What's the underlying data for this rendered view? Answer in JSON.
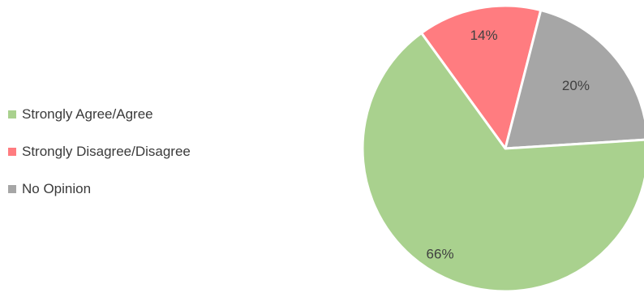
{
  "chart_data": {
    "type": "pie",
    "categories": [
      "Strongly Agree/Agree",
      "Strongly Disagree/Disagree",
      "No Opinion"
    ],
    "values": [
      66,
      14,
      20
    ],
    "data_labels": [
      "66%",
      "14%",
      "20%"
    ],
    "colors": [
      "#a9d18e",
      "#ff7c80",
      "#a6a6a6"
    ],
    "legend_position": "left",
    "title": ""
  }
}
